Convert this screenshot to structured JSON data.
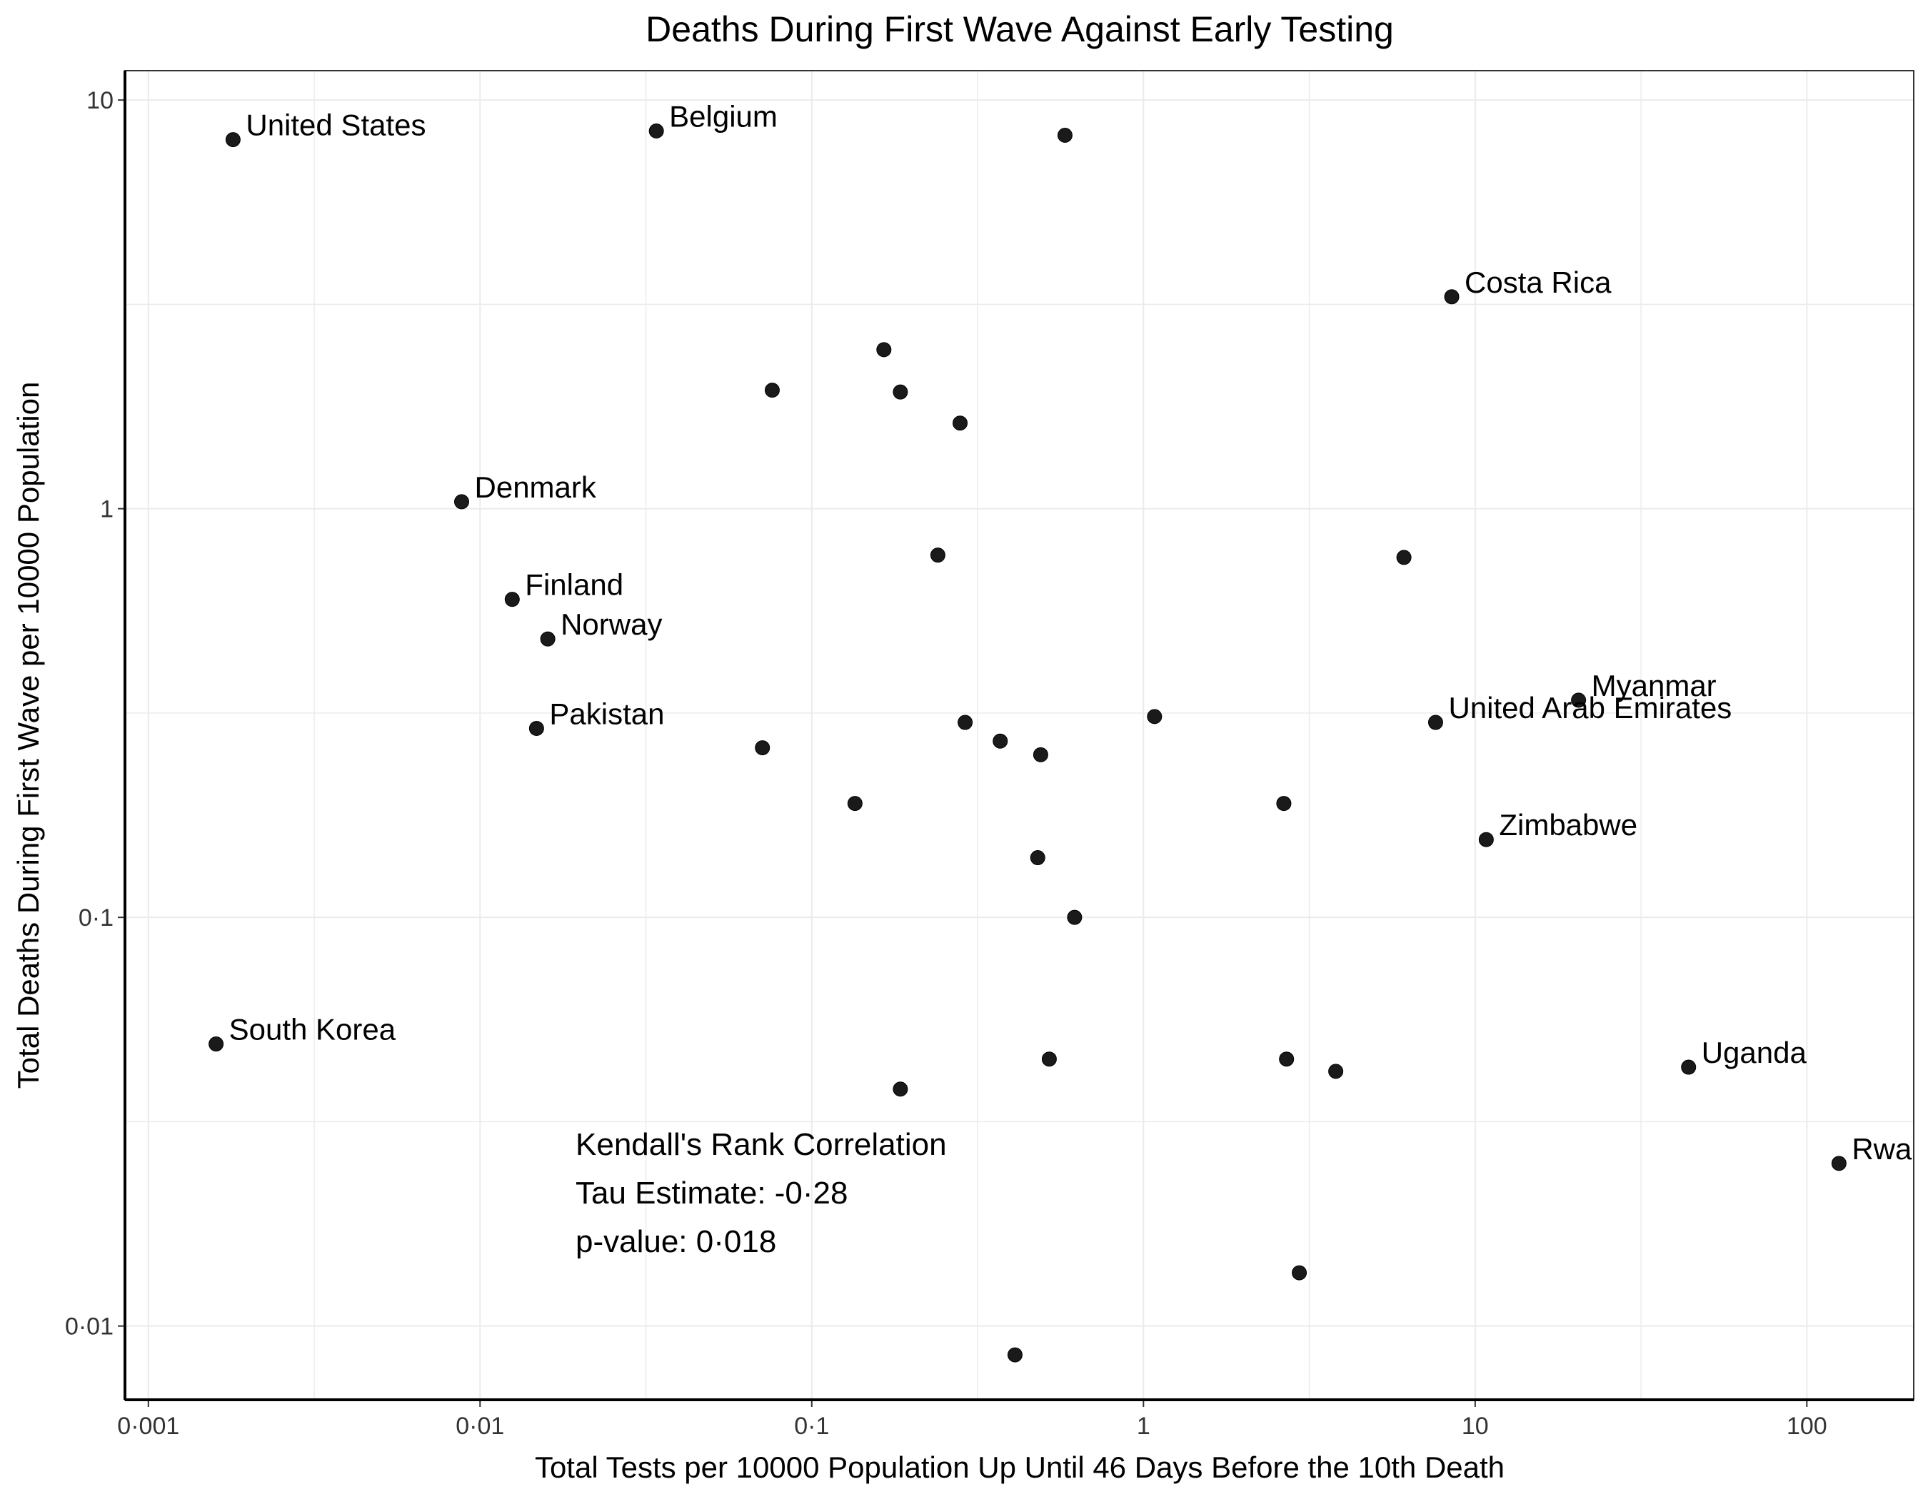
{
  "chart_data": {
    "type": "scatter",
    "title": "Deaths During First Wave Against Early Testing",
    "xlabel": "Total Tests per 10000 Population Up Until 46 Days Before the 10th Death",
    "ylabel": "Total Deaths During First Wave per 10000 Population",
    "x_scale": "log10",
    "y_scale": "log10",
    "xlim": [
      0.00085,
      210
    ],
    "ylim": [
      0.0066,
      11.8
    ],
    "grid": true,
    "x_ticks": [
      {
        "value": 0.001,
        "label": "0·001"
      },
      {
        "value": 0.01,
        "label": "0·01"
      },
      {
        "value": 0.1,
        "label": "0·1"
      },
      {
        "value": 1,
        "label": "1"
      },
      {
        "value": 10,
        "label": "10"
      },
      {
        "value": 100,
        "label": "100"
      }
    ],
    "y_ticks": [
      {
        "value": 0.01,
        "label": "0·01"
      },
      {
        "value": 0.1,
        "label": "0·1"
      },
      {
        "value": 1,
        "label": "1"
      },
      {
        "value": 10,
        "label": "10"
      }
    ],
    "points": [
      {
        "x": 0.0018,
        "y": 8.0,
        "label": "United States"
      },
      {
        "x": 0.034,
        "y": 8.4,
        "label": "Belgium"
      },
      {
        "x": 0.58,
        "y": 8.2,
        "label": ""
      },
      {
        "x": 8.5,
        "y": 3.3,
        "label": "Costa Rica"
      },
      {
        "x": 0.165,
        "y": 2.45,
        "label": ""
      },
      {
        "x": 0.076,
        "y": 1.95,
        "label": ""
      },
      {
        "x": 0.185,
        "y": 1.93,
        "label": ""
      },
      {
        "x": 0.28,
        "y": 1.62,
        "label": ""
      },
      {
        "x": 0.0088,
        "y": 1.04,
        "label": "Denmark"
      },
      {
        "x": 0.24,
        "y": 0.77,
        "label": ""
      },
      {
        "x": 6.1,
        "y": 0.76,
        "label": ""
      },
      {
        "x": 0.0125,
        "y": 0.6,
        "label": "Finland"
      },
      {
        "x": 0.016,
        "y": 0.48,
        "label": "Norway"
      },
      {
        "x": 20.5,
        "y": 0.34,
        "label": "Myanmar"
      },
      {
        "x": 1.08,
        "y": 0.31,
        "label": ""
      },
      {
        "x": 0.29,
        "y": 0.3,
        "label": ""
      },
      {
        "x": 7.6,
        "y": 0.3,
        "label": "United Arab Emirates"
      },
      {
        "x": 0.0148,
        "y": 0.29,
        "label": "Pakistan"
      },
      {
        "x": 0.37,
        "y": 0.27,
        "label": ""
      },
      {
        "x": 0.071,
        "y": 0.26,
        "label": ""
      },
      {
        "x": 0.49,
        "y": 0.25,
        "label": ""
      },
      {
        "x": 0.135,
        "y": 0.19,
        "label": ""
      },
      {
        "x": 2.65,
        "y": 0.19,
        "label": ""
      },
      {
        "x": 10.8,
        "y": 0.155,
        "label": "Zimbabwe"
      },
      {
        "x": 0.48,
        "y": 0.14,
        "label": ""
      },
      {
        "x": 0.62,
        "y": 0.1,
        "label": ""
      },
      {
        "x": 0.0016,
        "y": 0.049,
        "label": "South Korea"
      },
      {
        "x": 0.52,
        "y": 0.045,
        "label": ""
      },
      {
        "x": 2.7,
        "y": 0.045,
        "label": ""
      },
      {
        "x": 3.8,
        "y": 0.042,
        "label": ""
      },
      {
        "x": 44,
        "y": 0.043,
        "label": "Uganda"
      },
      {
        "x": 0.185,
        "y": 0.038,
        "label": ""
      },
      {
        "x": 125,
        "y": 0.025,
        "label": "Rwa"
      },
      {
        "x": 2.95,
        "y": 0.0135,
        "label": ""
      },
      {
        "x": 0.41,
        "y": 0.0085,
        "label": ""
      }
    ],
    "annotation": [
      "Kendall's Rank Correlation",
      "Tau Estimate: -0·28",
      "p-value: 0·018"
    ],
    "point_color": "#1a1a1a",
    "grid_color": "#ebebeb"
  }
}
